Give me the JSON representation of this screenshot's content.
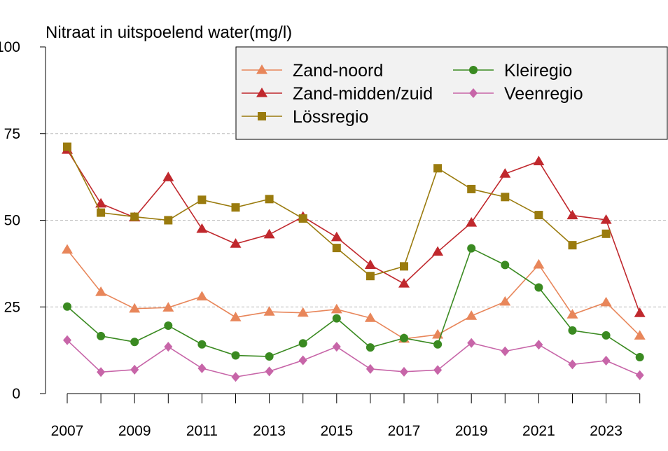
{
  "chart_data": {
    "type": "line",
    "title": "Nitraat in uitspoelend water(mg/l)",
    "xlabel": "",
    "ylabel": "",
    "ylim": [
      0,
      100
    ],
    "yticks": [
      0,
      25,
      50,
      75,
      100
    ],
    "xlim": [
      2007,
      2024
    ],
    "xticks": [
      2007,
      2009,
      2011,
      2013,
      2015,
      2017,
      2019,
      2021,
      2023
    ],
    "grid": "horizontal dashed at 25, 50, 75",
    "legend_position": "top-right",
    "x": [
      2007,
      2008,
      2009,
      2010,
      2011,
      2012,
      2013,
      2014,
      2015,
      2016,
      2017,
      2018,
      2019,
      2020,
      2021,
      2022,
      2023,
      2024
    ],
    "series": [
      {
        "name": "Zand-noord",
        "color": "#e8865a",
        "marker": "triangle",
        "values": [
          41.5,
          29.3,
          24.5,
          24.8,
          28.0,
          22.0,
          23.6,
          23.3,
          24.3,
          21.8,
          15.8,
          17.0,
          22.4,
          26.5,
          37.2,
          22.8,
          26.3,
          16.7
        ]
      },
      {
        "name": "Zand-midden/zuid",
        "color": "#c0282d",
        "marker": "triangle",
        "values": [
          70.3,
          54.8,
          50.8,
          62.4,
          47.5,
          43.2,
          45.9,
          51.0,
          45.1,
          37.1,
          31.7,
          40.9,
          49.3,
          63.4,
          67.0,
          51.4,
          50.1,
          23.2
        ]
      },
      {
        "name": "Lössregio",
        "color": "#9a7b0e",
        "marker": "square",
        "values": [
          71.2,
          52.2,
          51.0,
          50.0,
          55.9,
          53.7,
          56.1,
          50.5,
          42.0,
          33.9,
          36.7,
          65.0,
          59.0,
          56.7,
          51.5,
          42.8,
          46.1,
          null
        ]
      },
      {
        "name": "Kleiregio",
        "color": "#3a8a21",
        "marker": "circle",
        "values": [
          25.1,
          16.6,
          14.9,
          19.6,
          14.2,
          11.0,
          10.7,
          14.5,
          21.7,
          13.3,
          16.0,
          14.2,
          41.9,
          37.1,
          30.6,
          18.2,
          16.8,
          10.5
        ]
      },
      {
        "name": "Veenregio",
        "color": "#c765a8",
        "marker": "diamond",
        "values": [
          15.4,
          6.2,
          6.9,
          13.5,
          7.3,
          4.8,
          6.4,
          9.6,
          13.5,
          7.1,
          6.3,
          6.8,
          14.6,
          12.2,
          14.1,
          8.4,
          9.5,
          5.3
        ]
      }
    ]
  }
}
